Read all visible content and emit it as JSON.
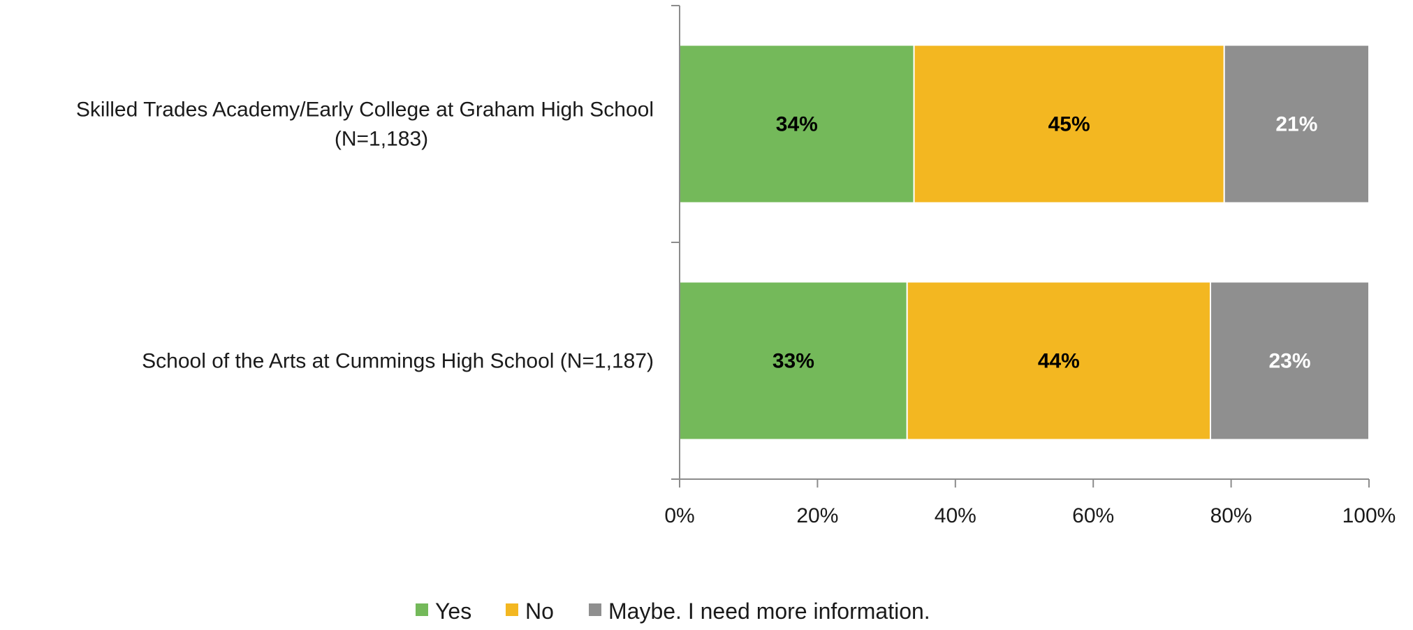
{
  "chart_data": {
    "type": "bar",
    "orientation": "horizontal",
    "stacked": true,
    "percent_stacked": true,
    "categories": [
      [
        "Skilled Trades Academy/Early College at Graham High School",
        "(N=1,183)"
      ],
      [
        "School of the Arts at Cummings High School (N=1,187)"
      ]
    ],
    "series": [
      {
        "name": "Yes",
        "values": [
          34,
          33
        ],
        "labels": [
          "34%",
          "33%"
        ],
        "color": "#74b95a",
        "label_color": "#000000"
      },
      {
        "name": "No",
        "values": [
          45,
          44
        ],
        "labels": [
          "45%",
          "44%"
        ],
        "color": "#f3b721",
        "label_color": "#000000"
      },
      {
        "name": "Maybe. I need more information.",
        "values": [
          21,
          23
        ],
        "labels": [
          "21%",
          "23%"
        ],
        "color": "#8f8f8f",
        "label_color": "#ffffff"
      }
    ],
    "xlim": [
      0,
      100
    ],
    "x_ticks": [
      0,
      20,
      40,
      60,
      80,
      100
    ],
    "x_tick_labels": [
      "0%",
      "20%",
      "40%",
      "60%",
      "80%",
      "100%"
    ],
    "grid": false,
    "legend_position": "bottom"
  }
}
